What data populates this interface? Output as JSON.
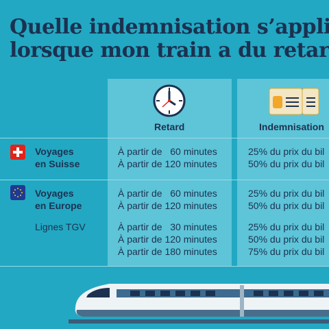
{
  "header": {
    "title_lines": [
      "Quelle indemnisation s’appliq",
      "lorsque mon train a du retard"
    ]
  },
  "table": {
    "columns": [
      "Retard",
      "Indemnisation"
    ],
    "groups": [
      {
        "label_lines": [
          "Voyages",
          "en Suisse"
        ],
        "rows": [
          [
            "À partir de   60 minutes",
            "25% du prix du bil"
          ],
          [
            "À partir de 120 minutes",
            "50% du prix du bil"
          ]
        ]
      },
      {
        "label_lines": [
          "Voyages",
          "en Europe"
        ],
        "rows": [
          [
            "À partir de   60 minutes",
            "25% du prix du bil"
          ],
          [
            "À partir de 120 minutes",
            "50% du prix du bil"
          ]
        ]
      },
      {
        "label_lines": [
          "Lignes TGV"
        ],
        "rows": [
          [
            "À partir de   30 minutes",
            "25% du prix du bil"
          ],
          [
            "À partir de 120 minutes",
            "50% du prix du bil"
          ],
          [
            "À partir de 180 minutes",
            "75% du prix du bil"
          ]
        ]
      }
    ]
  }
}
